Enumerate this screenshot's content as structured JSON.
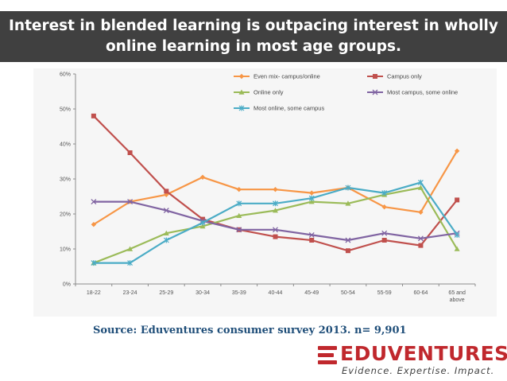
{
  "title": "Interest in blended learning is outpacing interest in wholly online learning in most age groups.",
  "source": "Source: Eduventures consumer survey 2013. n= 9,901",
  "logo": {
    "name": "EDUVENTURES",
    "tagline": "Evidence. Expertise. Impact."
  },
  "colors": {
    "title_bar": "#404040",
    "brand_red": "#c0282d",
    "source_text": "#1f4e79"
  },
  "chart_data": {
    "type": "line",
    "categories": [
      "18-22",
      "23-24",
      "25-29",
      "30-34",
      "35-39",
      "40-44",
      "45-49",
      "50-54",
      "55-59",
      "60-64",
      "65 and above"
    ],
    "category_labels": [
      [
        "18-22"
      ],
      [
        "23-24"
      ],
      [
        "25-29"
      ],
      [
        "30-34"
      ],
      [
        "35-39"
      ],
      [
        "40-44"
      ],
      [
        "45-49"
      ],
      [
        "50-54"
      ],
      [
        "55-59"
      ],
      [
        "60-64"
      ],
      [
        "65 and",
        "above"
      ]
    ],
    "ylim": [
      0,
      60
    ],
    "yticks": [
      0,
      10,
      20,
      30,
      40,
      50,
      60
    ],
    "y_tick_format": "percent",
    "grid": false,
    "legend_position": "top-right",
    "series": [
      {
        "name": "Even mix- campus/online",
        "color": "#f79646",
        "marker": "diamond",
        "values": [
          17,
          23.5,
          25.5,
          30.5,
          27,
          27,
          26,
          27.5,
          22,
          20.5,
          38
        ]
      },
      {
        "name": "Campus only",
        "color": "#c0504d",
        "marker": "square",
        "values": [
          48,
          37.5,
          26.5,
          18.5,
          15.5,
          13.5,
          12.5,
          9.5,
          12.5,
          11,
          24
        ]
      },
      {
        "name": "Online only",
        "color": "#9bbb59",
        "marker": "triangle",
        "values": [
          6,
          10,
          14.5,
          16.5,
          19.5,
          21,
          23.5,
          23,
          25.5,
          27.5,
          10
        ]
      },
      {
        "name": "Most campus, some online",
        "color": "#8064a2",
        "marker": "x",
        "values": [
          23.5,
          23.5,
          21,
          18,
          15.5,
          15.5,
          14,
          12.5,
          14.5,
          13,
          14.5
        ]
      },
      {
        "name": "Most online, some campus",
        "color": "#4bacc6",
        "marker": "star",
        "values": [
          6,
          6,
          12.5,
          17.5,
          23,
          23,
          24.5,
          27.5,
          26,
          29,
          14
        ]
      }
    ]
  }
}
